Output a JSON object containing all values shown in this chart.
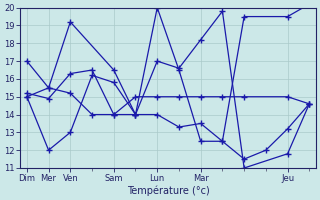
{
  "xlabel": "Température (°c)",
  "xlim": [
    -0.3,
    13.3
  ],
  "ylim": [
    11,
    20
  ],
  "yticks": [
    11,
    12,
    13,
    14,
    15,
    16,
    17,
    18,
    19,
    20
  ],
  "xtick_positions": [
    0,
    1,
    2,
    4,
    6,
    8,
    12
  ],
  "xtick_labels": [
    "Dim",
    "Mer",
    "Ven",
    "Sam",
    "Lun",
    "Mar",
    "Jeu"
  ],
  "background_color": "#cce8e8",
  "line_color": "#1a1aaa",
  "grid_color": "#aacaca",
  "lines": [
    {
      "x": [
        0,
        1,
        2,
        4,
        5,
        6,
        7,
        8,
        9,
        10,
        12,
        13
      ],
      "y": [
        17.0,
        15.5,
        19.2,
        16.5,
        14.0,
        20.0,
        16.5,
        12.5,
        12.5,
        19.5,
        19.5,
        20.2
      ]
    },
    {
      "x": [
        0,
        1,
        2,
        3,
        4,
        5,
        6,
        7,
        8,
        9,
        10,
        12,
        13
      ],
      "y": [
        15.0,
        15.5,
        15.2,
        14.0,
        14.0,
        15.0,
        15.0,
        15.0,
        15.0,
        15.0,
        15.0,
        15.0,
        14.6
      ]
    },
    {
      "x": [
        0,
        1,
        2,
        3,
        4,
        5,
        6,
        7,
        8,
        9,
        10,
        12,
        13
      ],
      "y": [
        15.2,
        14.9,
        16.3,
        16.5,
        14.0,
        14.0,
        17.0,
        16.6,
        18.2,
        19.8,
        11.0,
        11.8,
        14.6
      ]
    },
    {
      "x": [
        0,
        1,
        2,
        3,
        4,
        5,
        6,
        7,
        8,
        9,
        10,
        11,
        12,
        13
      ],
      "y": [
        15.0,
        12.0,
        13.0,
        16.2,
        15.8,
        14.0,
        14.0,
        13.3,
        13.5,
        12.5,
        11.5,
        12.0,
        13.2,
        14.6
      ]
    }
  ]
}
